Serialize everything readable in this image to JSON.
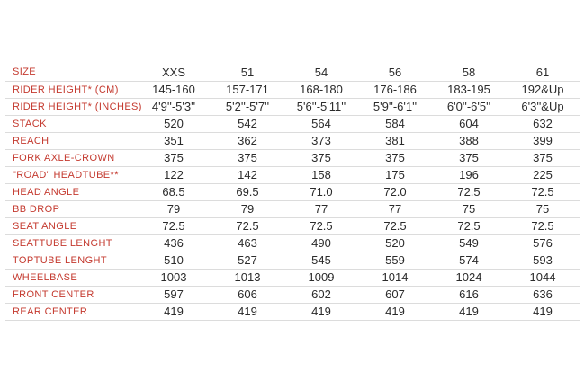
{
  "table": {
    "columns": [
      "SIZE",
      "XXS",
      "51",
      "54",
      "56",
      "58",
      "61"
    ],
    "rows": [
      {
        "label": "RIDER HEIGHT* (CM)",
        "values": [
          "145-160",
          "157-171",
          "168-180",
          "176-186",
          "183-195",
          "192&Up"
        ]
      },
      {
        "label": "RIDER HEIGHT* (INCHES)",
        "values": [
          "4'9''-5'3''",
          "5'2''-5'7''",
          "5'6''-5'11''",
          "5'9''-6'1''",
          "6'0''-6'5''",
          "6'3''&Up"
        ]
      },
      {
        "label": "STACK",
        "values": [
          "520",
          "542",
          "564",
          "584",
          "604",
          "632"
        ]
      },
      {
        "label": "REACH",
        "values": [
          "351",
          "362",
          "373",
          "381",
          "388",
          "399"
        ]
      },
      {
        "label": "FORK AXLE-CROWN",
        "values": [
          "375",
          "375",
          "375",
          "375",
          "375",
          "375"
        ]
      },
      {
        "label": "\"ROAD\" HEADTUBE**",
        "values": [
          "122",
          "142",
          "158",
          "175",
          "196",
          "225"
        ]
      },
      {
        "label": "HEAD ANGLE",
        "values": [
          "68.5",
          "69.5",
          "71.0",
          "72.0",
          "72.5",
          "72.5"
        ]
      },
      {
        "label": "BB DROP",
        "values": [
          "79",
          "79",
          "77",
          "77",
          "75",
          "75"
        ]
      },
      {
        "label": "SEAT ANGLE",
        "values": [
          "72.5",
          "72.5",
          "72.5",
          "72.5",
          "72.5",
          "72.5"
        ]
      },
      {
        "label": "SEATTUBE LENGHT",
        "values": [
          "436",
          "463",
          "490",
          "520",
          "549",
          "576"
        ]
      },
      {
        "label": "TOPTUBE LENGHT",
        "values": [
          "510",
          "527",
          "545",
          "559",
          "574",
          "593"
        ]
      },
      {
        "label": "WHEELBASE",
        "values": [
          "1003",
          "1013",
          "1009",
          "1014",
          "1024",
          "1044"
        ]
      },
      {
        "label": "FRONT CENTER",
        "values": [
          "597",
          "606",
          "602",
          "607",
          "616",
          "636"
        ]
      },
      {
        "label": "REAR CENTER",
        "values": [
          "419",
          "419",
          "419",
          "419",
          "419",
          "419"
        ]
      }
    ]
  },
  "colors": {
    "label_red": "#c4392e",
    "value_text": "#2b2b2b",
    "divider": "#dcdcdc",
    "background": "#ffffff"
  }
}
